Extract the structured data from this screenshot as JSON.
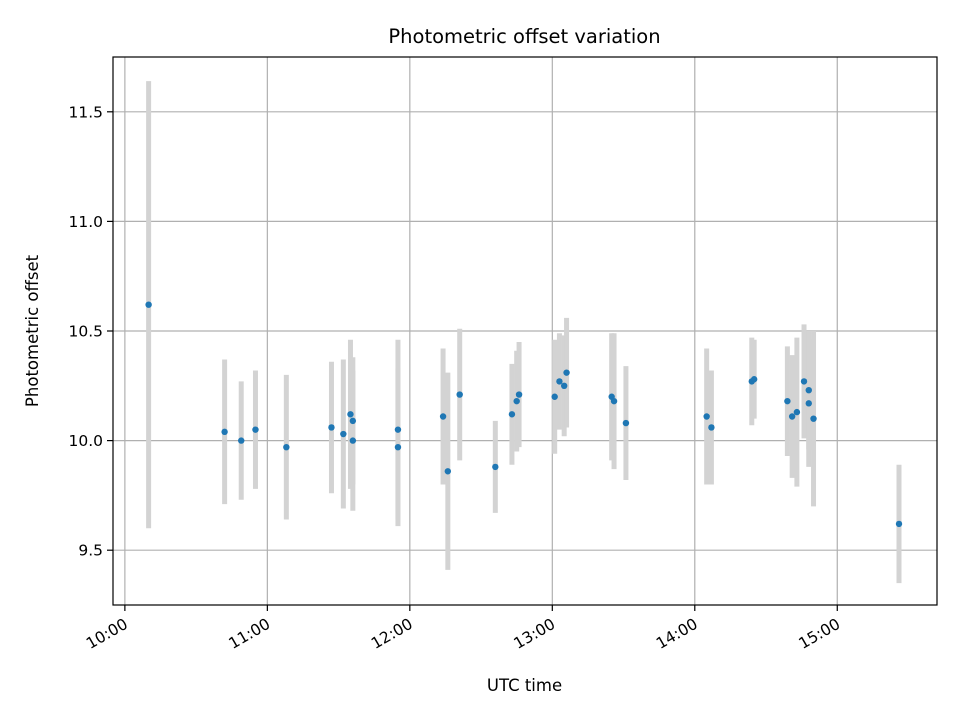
{
  "chart_data": {
    "type": "scatter",
    "title": "Photometric offset variation",
    "xlabel": "UTC time",
    "ylabel": "Photometric offset",
    "grid": true,
    "xlim": [
      "09:55",
      "15:42"
    ],
    "ylim": [
      9.25,
      11.75
    ],
    "x_ticks": [
      "10:00",
      "11:00",
      "12:00",
      "13:00",
      "14:00",
      "15:00"
    ],
    "y_ticks": [
      9.5,
      10.0,
      10.5,
      11.0,
      11.5
    ],
    "y_tick_labels": [
      "9.5",
      "10.0",
      "10.5",
      "11.0",
      "11.5"
    ],
    "colors": {
      "point": "#1f77b4",
      "errorbar": "#d3d3d3",
      "grid": "#b0b0b0"
    },
    "series": [
      {
        "points": [
          {
            "x": "10:10",
            "y": 10.62,
            "err": 1.02
          },
          {
            "x": "10:42",
            "y": 10.04,
            "err": 0.33
          },
          {
            "x": "10:49",
            "y": 10.0,
            "err": 0.27
          },
          {
            "x": "10:55",
            "y": 10.05,
            "err": 0.27
          },
          {
            "x": "11:08",
            "y": 9.97,
            "err": 0.33
          },
          {
            "x": "11:27",
            "y": 10.06,
            "err": 0.3
          },
          {
            "x": "11:32",
            "y": 10.03,
            "err": 0.34
          },
          {
            "x": "11:35",
            "y": 10.12,
            "err": 0.34
          },
          {
            "x": "11:36",
            "y": 10.0,
            "err": 0.32
          },
          {
            "x": "11:36",
            "y": 10.09,
            "err": 0.29
          },
          {
            "x": "11:55",
            "y": 9.97,
            "err": 0.36
          },
          {
            "x": "11:55",
            "y": 10.05,
            "err": 0.41
          },
          {
            "x": "12:14",
            "y": 10.11,
            "err": 0.31
          },
          {
            "x": "12:16",
            "y": 9.86,
            "err": 0.45
          },
          {
            "x": "12:21",
            "y": 10.21,
            "err": 0.3
          },
          {
            "x": "12:36",
            "y": 9.88,
            "err": 0.21
          },
          {
            "x": "12:43",
            "y": 10.12,
            "err": 0.23
          },
          {
            "x": "12:45",
            "y": 10.18,
            "err": 0.23
          },
          {
            "x": "12:46",
            "y": 10.21,
            "err": 0.24
          },
          {
            "x": "13:01",
            "y": 10.2,
            "err": 0.26
          },
          {
            "x": "13:03",
            "y": 10.27,
            "err": 0.22
          },
          {
            "x": "13:05",
            "y": 10.25,
            "err": 0.23
          },
          {
            "x": "13:06",
            "y": 10.31,
            "err": 0.25
          },
          {
            "x": "13:25",
            "y": 10.2,
            "err": 0.29
          },
          {
            "x": "13:26",
            "y": 10.18,
            "err": 0.31
          },
          {
            "x": "13:31",
            "y": 10.08,
            "err": 0.26
          },
          {
            "x": "14:05",
            "y": 10.11,
            "err": 0.31
          },
          {
            "x": "14:07",
            "y": 10.06,
            "err": 0.26
          },
          {
            "x": "14:24",
            "y": 10.27,
            "err": 0.2
          },
          {
            "x": "14:25",
            "y": 10.28,
            "err": 0.18
          },
          {
            "x": "14:39",
            "y": 10.18,
            "err": 0.25
          },
          {
            "x": "14:41",
            "y": 10.11,
            "err": 0.28
          },
          {
            "x": "14:43",
            "y": 10.13,
            "err": 0.34
          },
          {
            "x": "14:46",
            "y": 10.27,
            "err": 0.26
          },
          {
            "x": "14:48",
            "y": 10.17,
            "err": 0.29
          },
          {
            "x": "14:48",
            "y": 10.23,
            "err": 0.27
          },
          {
            "x": "14:50",
            "y": 10.1,
            "err": 0.4
          },
          {
            "x": "15:26",
            "y": 9.62,
            "err": 0.27
          }
        ]
      }
    ]
  }
}
